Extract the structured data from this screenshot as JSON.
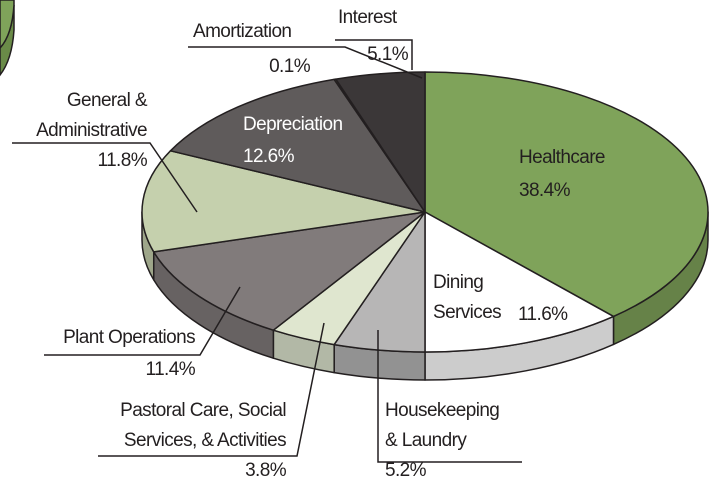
{
  "chart_data": {
    "type": "pie3d",
    "categories": [
      "Healthcare",
      "Dining\nServices",
      "Housekeeping\n& Laundry",
      "Pastoral Care, Social\nServices, & Activities",
      "Plant Operations",
      "General &\nAdministrative",
      "Depreciation",
      "Amortization",
      "Interest"
    ],
    "values": [
      38.4,
      11.6,
      5.2,
      3.8,
      11.4,
      11.8,
      12.6,
      0.1,
      5.1
    ],
    "value_labels": [
      "38.4%",
      "11.6%",
      "5.2%",
      "3.8%",
      "11.4%",
      "11.8%",
      "12.6%",
      "0.1%",
      "5.1%"
    ],
    "colors": [
      "#7fa35a",
      "#ffffff",
      "#b7b6b6",
      "#dfe6cf",
      "#817b7b",
      "#c5d0ad",
      "#5f5b5b",
      "#9cba7e",
      "#3b3738"
    ]
  }
}
